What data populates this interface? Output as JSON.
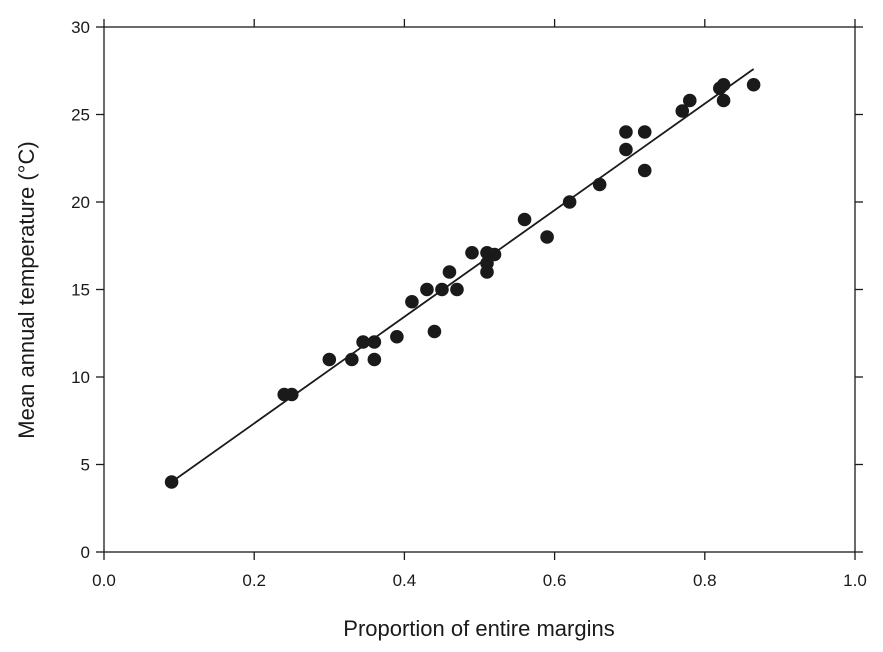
{
  "chart_data": {
    "type": "scatter",
    "title": "",
    "xlabel": "Proportion of entire margins",
    "ylabel": "Mean annual temperature (°C)",
    "xlim": [
      0.0,
      1.0
    ],
    "ylim": [
      0,
      30
    ],
    "x_ticks": [
      "0.0",
      "0.2",
      "0.4",
      "0.6",
      "0.8",
      "1.0"
    ],
    "y_ticks": [
      "0",
      "5",
      "10",
      "15",
      "20",
      "25",
      "30"
    ],
    "grid": false,
    "legend": "none",
    "point_color": "#1a1a1a",
    "series": [
      {
        "points": [
          [
            0.09,
            4.0
          ],
          [
            0.24,
            9.0
          ],
          [
            0.25,
            9.0
          ],
          [
            0.3,
            11.0
          ],
          [
            0.33,
            11.0
          ],
          [
            0.345,
            12.0
          ],
          [
            0.36,
            12.0
          ],
          [
            0.36,
            11.0
          ],
          [
            0.39,
            12.3
          ],
          [
            0.41,
            14.3
          ],
          [
            0.43,
            15.0
          ],
          [
            0.44,
            12.6
          ],
          [
            0.45,
            15.0
          ],
          [
            0.46,
            16.0
          ],
          [
            0.47,
            15.0
          ],
          [
            0.49,
            17.1
          ],
          [
            0.51,
            17.1
          ],
          [
            0.51,
            16.5
          ],
          [
            0.51,
            16.0
          ],
          [
            0.52,
            17.0
          ],
          [
            0.56,
            19.0
          ],
          [
            0.59,
            18.0
          ],
          [
            0.62,
            20.0
          ],
          [
            0.66,
            21.0
          ],
          [
            0.695,
            24.0
          ],
          [
            0.695,
            23.0
          ],
          [
            0.72,
            24.0
          ],
          [
            0.72,
            21.8
          ],
          [
            0.77,
            25.2
          ],
          [
            0.78,
            25.8
          ],
          [
            0.82,
            26.5
          ],
          [
            0.825,
            26.7
          ],
          [
            0.825,
            25.8
          ],
          [
            0.865,
            26.7
          ]
        ]
      }
    ],
    "trend_line": {
      "x": [
        0.09,
        0.865
      ],
      "y": [
        4.0,
        27.6
      ]
    }
  }
}
